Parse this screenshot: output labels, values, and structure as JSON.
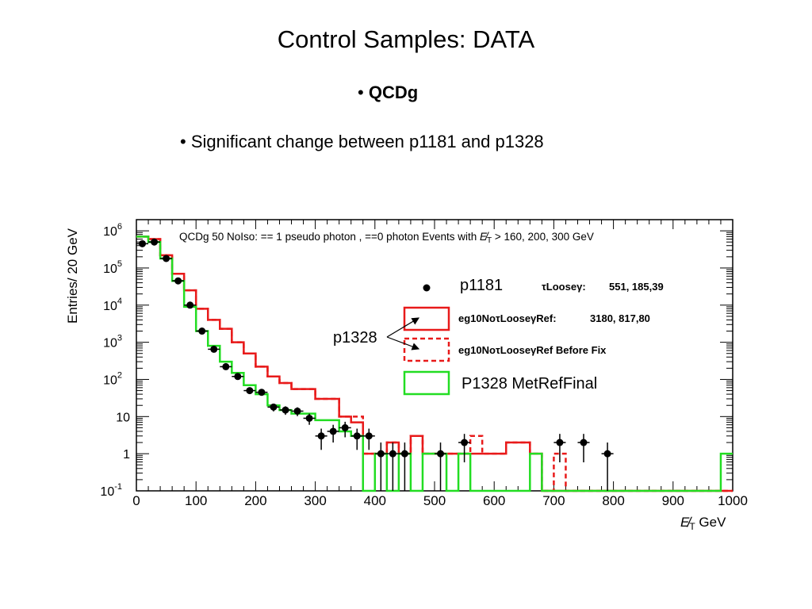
{
  "slide": {
    "title": "Control Samples: DATA",
    "bullet_marker": "•",
    "bullet1": "QCDg",
    "bullet2": "• Significant change between p1181 and p1328"
  },
  "colors": {
    "red": "#e81a1a",
    "green": "#22dd22",
    "black": "#000000"
  },
  "chart_data": {
    "type": "histogram",
    "title": "QCDg 50 NoIso: == 1 pseudo photon , ==0 photon Events with E̸T > 160, 200, 300 GeV",
    "title_parts": {
      "main": "QCDg 50 NoIso: == 1 pseudo photon , ==0 photon Events with ",
      "met": "E̸",
      "met_sub": "T",
      "tail": " > 160, 200, 300 GeV"
    },
    "xlabel": {
      "met": "E̸",
      "sub": "T",
      "unit": " GeV"
    },
    "ylabel": "Entries/ 20 GeV",
    "xlim": [
      0,
      1000
    ],
    "ylim": [
      0.1,
      2000000
    ],
    "log_y": true,
    "bin_width": 20,
    "x_ticks": [
      "0",
      "100",
      "200",
      "300",
      "400",
      "500",
      "600",
      "700",
      "800",
      "900",
      "1000"
    ],
    "y_ticks": [
      {
        "value": 0.1,
        "base": "10",
        "exp": "-1"
      },
      {
        "value": 1,
        "base": "1",
        "exp": ""
      },
      {
        "value": 10,
        "base": "10",
        "exp": ""
      },
      {
        "value": 100,
        "base": "10",
        "exp": "2"
      },
      {
        "value": 1000,
        "base": "10",
        "exp": "3"
      },
      {
        "value": 10000,
        "base": "10",
        "exp": "4"
      },
      {
        "value": 100000,
        "base": "10",
        "exp": "5"
      },
      {
        "value": 1000000,
        "base": "10",
        "exp": "6"
      }
    ],
    "series": [
      {
        "name": "eg10NoτLooseγRef:",
        "legend_value": "3180, 817,80",
        "style": "solid",
        "color": "#e81a1a",
        "values": [
          700000,
          600000,
          220000,
          70000,
          25000,
          8000,
          4000,
          2300,
          1000,
          500,
          220,
          120,
          80,
          55,
          55,
          30,
          30,
          10,
          7,
          1,
          1,
          2,
          1,
          3,
          1,
          1,
          1,
          1,
          1,
          1,
          1,
          2,
          2,
          1,
          0.1,
          0.1,
          0.1,
          0.1,
          0.1,
          0.1,
          0.1,
          0.1,
          0.1,
          0.1,
          0.1,
          0.1,
          0.1,
          0.1,
          0.1,
          0.1
        ]
      },
      {
        "name": "eg10NoτLooseγRef Before Fix",
        "legend_value": "",
        "style": "dashed",
        "color": "#e81a1a",
        "values": [
          700000,
          600000,
          220000,
          70000,
          25000,
          8000,
          4000,
          2300,
          1000,
          500,
          220,
          120,
          80,
          55,
          55,
          30,
          30,
          10,
          10,
          1,
          1,
          2,
          1,
          3,
          1,
          1,
          1,
          1,
          3,
          1,
          1,
          2,
          2,
          1,
          0.1,
          1,
          0.1,
          0.1,
          0.1,
          0.1,
          0.1,
          0.1,
          0.1,
          0.1,
          0.1,
          0.1,
          0.1,
          0.1,
          0.1,
          0.1
        ]
      },
      {
        "name": "P1328 MetRefFinal",
        "legend_value": "",
        "style": "solid",
        "color": "#22dd22",
        "values": [
          700000,
          500000,
          180000,
          45000,
          9000,
          2000,
          800,
          300,
          150,
          70,
          40,
          20,
          15,
          12,
          12,
          8,
          8,
          4,
          3,
          0.1,
          1,
          0.1,
          1,
          0.1,
          1,
          1,
          0.1,
          1,
          0.1,
          0.1,
          0.1,
          0.1,
          0.1,
          1,
          0.1,
          0.1,
          0.1,
          0.1,
          0.1,
          0.1,
          0.1,
          0.1,
          0.1,
          0.1,
          0.1,
          0.1,
          0.1,
          0.1,
          0.1,
          1
        ]
      }
    ],
    "points": {
      "name": "p1181",
      "legend_label": "τLooseγ:",
      "legend_value": "551, 185,39",
      "x": [
        10,
        30,
        50,
        70,
        90,
        110,
        130,
        150,
        170,
        190,
        210,
        230,
        250,
        270,
        290,
        310,
        330,
        350,
        370,
        390,
        410,
        430,
        450,
        510,
        550,
        710,
        750,
        790
      ],
      "y": [
        450000,
        500000,
        180000,
        45000,
        10000,
        2000,
        650,
        220,
        120,
        50,
        45,
        18,
        15,
        14,
        9,
        3,
        4,
        5,
        3,
        3,
        1,
        1,
        1,
        1,
        2,
        2,
        2,
        1
      ]
    },
    "legend": {
      "p1181_label": "p1181",
      "tau_label": "τLooseγ:",
      "tau_value": "551, 185,39",
      "red_label": "eg10NoτLooseγRef:",
      "red_value": "3180, 817,80",
      "dash_label": "eg10NoτLooseγRef Before Fix",
      "green_label": "P1328 MetRefFinal",
      "annotation": "p1328"
    }
  }
}
